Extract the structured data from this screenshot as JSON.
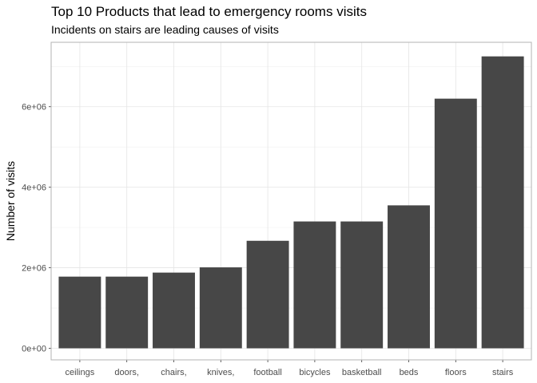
{
  "chart_data": {
    "type": "bar",
    "title": "Top 10 Products that lead to emergency rooms visits",
    "subtitle": "Incidents on stairs are leading causes of visits",
    "xlabel": "",
    "ylabel": "Number of visits",
    "categories": [
      "ceilings",
      "doors,",
      "chairs,",
      "knives,",
      "football",
      "bicycles",
      "basketball",
      "beds",
      "floors",
      "stairs"
    ],
    "values": [
      1780000,
      1780000,
      1880000,
      2010000,
      2670000,
      3150000,
      3150000,
      3550000,
      6200000,
      7250000
    ],
    "ylim": [
      0,
      7600000
    ],
    "yticks": [
      0,
      2000000,
      4000000,
      6000000
    ],
    "ytick_labels": [
      "0e+00",
      "2e+06",
      "4e+06",
      "6e+06"
    ],
    "grid": true,
    "bar_color": "#474747",
    "theme": "light"
  }
}
